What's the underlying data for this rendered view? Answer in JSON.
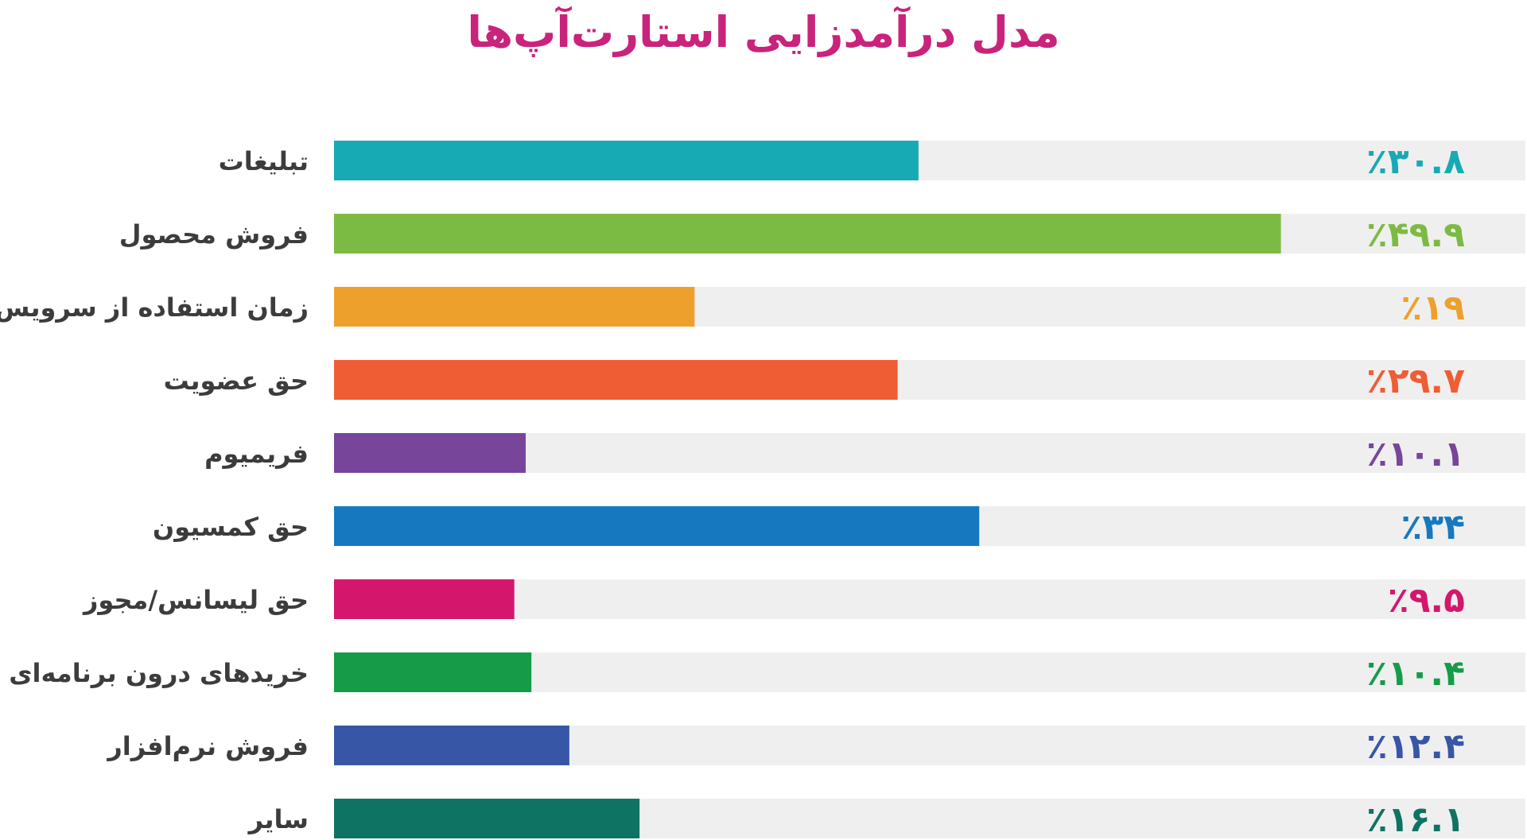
{
  "colors": {
    "title": "#c9237c",
    "track": "#efefef",
    "label_text": "#3c3c3c"
  },
  "chart_data": {
    "type": "bar",
    "orientation": "horizontal",
    "title": "مدل درآمدزایی استارت‌آپ‌ها",
    "xlabel": "",
    "ylabel": "",
    "xlim": [
      0,
      60
    ],
    "grid": false,
    "legend": "none",
    "value_suffix": "٪",
    "categories": [
      "تبلیغات",
      "فروش محصول",
      "زمان استفاده از سرویس",
      "حق عضویت",
      "فریمیوم",
      "حق کمسیون",
      "حق لیسانس/مجوز",
      "خریدهای درون برنامه‌ای",
      "فروش نرم‌افزار",
      "سایر"
    ],
    "values": [
      30.8,
      49.9,
      19,
      29.7,
      10.1,
      34,
      9.5,
      10.4,
      12.4,
      16.1
    ],
    "value_labels": [
      "٪۳۰.۸",
      "٪۴۹.۹",
      "٪۱۹",
      "٪۲۹.۷",
      "٪۱۰.۱",
      "٪۳۴",
      "٪۹.۵",
      "٪۱۰.۴",
      "٪۱۲.۴",
      "٪۱۶.۱"
    ],
    "colors": [
      "#17aab5",
      "#7cbb43",
      "#eea02c",
      "#ef5d35",
      "#77459a",
      "#1679bf",
      "#d4166d",
      "#169b48",
      "#3756a6",
      "#0f7364"
    ]
  }
}
